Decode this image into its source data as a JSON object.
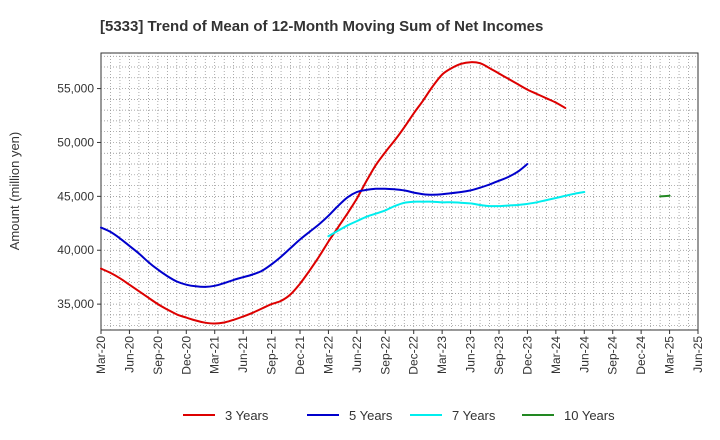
{
  "chart_data": {
    "type": "line",
    "title": "[5333]  Trend of Mean of 12-Month Moving Sum of Net Incomes",
    "ylabel": "Amount (million yen)",
    "xlabel": "",
    "x_ticks": [
      "Mar-20",
      "Jun-20",
      "Sep-20",
      "Dec-20",
      "Mar-21",
      "Jun-21",
      "Sep-21",
      "Dec-21",
      "Mar-22",
      "Jun-22",
      "Sep-22",
      "Dec-22",
      "Mar-23",
      "Jun-23",
      "Sep-23",
      "Dec-23",
      "Mar-24",
      "Jun-24",
      "Sep-24",
      "Dec-24",
      "Mar-25",
      "Jun-25"
    ],
    "y_ticks": [
      "35,000",
      "40,000",
      "45,000",
      "50,000",
      "55,000"
    ],
    "y_tick_values": [
      35000,
      40000,
      45000,
      50000,
      55000
    ],
    "ylim": [
      32600,
      58300
    ],
    "grid": true,
    "legend_position": "bottom",
    "series": [
      {
        "name": "3 Years",
        "color": "#dd0000",
        "start": "Mar-20",
        "values": [
          38300,
          37900,
          37400,
          36800,
          36200,
          35600,
          35000,
          34500,
          34050,
          33750,
          33480,
          33280,
          33200,
          33300,
          33550,
          33850,
          34200,
          34600,
          35000,
          35300,
          35900,
          36900,
          38100,
          39400,
          40800,
          42100,
          43400,
          44800,
          46400,
          47900,
          49100,
          50200,
          51400,
          52700,
          53900,
          55200,
          56300,
          56900,
          57300,
          57450,
          57350,
          56900,
          56400,
          55900,
          55400,
          54900,
          54500,
          54100,
          53700,
          53200
        ]
      },
      {
        "name": "5 Years",
        "color": "#0000cc",
        "start": "Mar-20",
        "values": [
          42100,
          41700,
          41100,
          40400,
          39700,
          38900,
          38200,
          37600,
          37100,
          36800,
          36650,
          36600,
          36700,
          36950,
          37250,
          37500,
          37750,
          38100,
          38700,
          39400,
          40200,
          41000,
          41700,
          42400,
          43200,
          44100,
          44900,
          45400,
          45600,
          45700,
          45700,
          45650,
          45550,
          45350,
          45200,
          45150,
          45200,
          45300,
          45400,
          45550,
          45800,
          46100,
          46450,
          46800,
          47300,
          48000
        ]
      },
      {
        "name": "7 Years",
        "color": "#00eeee",
        "start": "Mar-22",
        "values": [
          41300,
          41800,
          42300,
          42700,
          43100,
          43400,
          43700,
          44100,
          44400,
          44500,
          44500,
          44500,
          44450,
          44450,
          44400,
          44350,
          44200,
          44100,
          44100,
          44150,
          44200,
          44300,
          44450,
          44650,
          44850,
          45050,
          45250,
          45400
        ]
      },
      {
        "name": "10 Years",
        "color": "#228822",
        "start": "Feb-25",
        "values": [
          45000,
          45050
        ]
      }
    ]
  }
}
